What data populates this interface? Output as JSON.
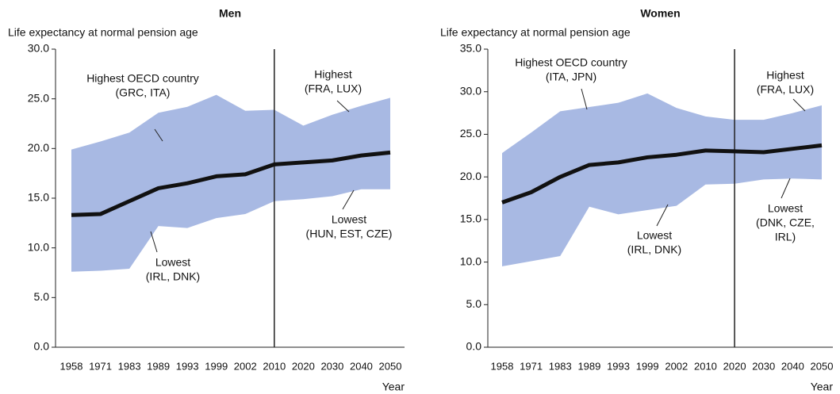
{
  "chart_data": [
    {
      "type": "band-line",
      "title": "Men",
      "y_label": "Life expectancy at normal pension age",
      "x_label": "Year",
      "categories": [
        "1958",
        "1971",
        "1983",
        "1989",
        "1993",
        "1999",
        "2002",
        "2010",
        "2020",
        "2030",
        "2040",
        "2050"
      ],
      "values": [
        13.3,
        13.4,
        14.7,
        16.0,
        16.5,
        17.2,
        17.4,
        18.4,
        18.6,
        18.8,
        19.3,
        19.6
      ],
      "band_high": [
        19.9,
        20.7,
        21.6,
        23.6,
        24.2,
        25.4,
        23.8,
        23.9,
        22.3,
        23.4,
        24.3,
        25.1
      ],
      "band_low": [
        7.6,
        7.7,
        7.9,
        12.2,
        12.0,
        13.0,
        13.4,
        14.7,
        14.9,
        15.2,
        15.9,
        15.9
      ],
      "color": "#111111",
      "band_color": "#a8b9e3",
      "divider": "2010",
      "ylim": [
        0,
        30
      ],
      "yticks": [
        {
          "value": 0,
          "label": "0.0"
        },
        {
          "value": 5,
          "label": "5.0"
        },
        {
          "value": 10,
          "label": "10.0"
        },
        {
          "value": 15,
          "label": "15.0"
        },
        {
          "value": 20,
          "label": "20.0"
        },
        {
          "value": 25,
          "label": "25.0"
        },
        {
          "value": 30,
          "label": "30.0"
        }
      ],
      "annotations": [
        [
          "Highest OECD country",
          "(GRC, ITA)"
        ],
        [
          "Highest",
          "(FRA, LUX)"
        ],
        [
          "Lowest",
          "(HUN, EST, CZE)"
        ],
        [
          "Lowest",
          "(IRL, DNK)"
        ]
      ]
    },
    {
      "type": "band-line",
      "title": "Women",
      "y_label": "Life expectancy at normal pension age",
      "x_label": "Year",
      "categories": [
        "1958",
        "1971",
        "1983",
        "1989",
        "1993",
        "1999",
        "2002",
        "2010",
        "2020",
        "2030",
        "2040",
        "2050"
      ],
      "values": [
        17.0,
        18.2,
        20.0,
        21.4,
        21.7,
        22.3,
        22.6,
        23.1,
        23.0,
        22.9,
        23.3,
        23.7
      ],
      "band_high": [
        22.8,
        25.2,
        27.7,
        28.2,
        28.7,
        29.8,
        28.1,
        27.1,
        26.7,
        26.7,
        27.5,
        28.4
      ],
      "band_low": [
        9.5,
        10.1,
        10.7,
        16.5,
        15.6,
        16.1,
        16.6,
        19.1,
        19.2,
        19.7,
        19.8,
        19.7
      ],
      "color": "#111111",
      "band_color": "#a8b9e3",
      "divider": "2020",
      "ylim": [
        0,
        35
      ],
      "yticks": [
        {
          "value": 0,
          "label": "0.0"
        },
        {
          "value": 5,
          "label": "5.0"
        },
        {
          "value": 10,
          "label": "10.0"
        },
        {
          "value": 15,
          "label": "15.0"
        },
        {
          "value": 20,
          "label": "20.0"
        },
        {
          "value": 25,
          "label": "25.0"
        },
        {
          "value": 30,
          "label": "30.0"
        },
        {
          "value": 35,
          "label": "35.0"
        }
      ],
      "annotations": [
        [
          "Highest OECD country",
          "(ITA, JPN)"
        ],
        [
          "Highest",
          "(FRA, LUX)"
        ],
        [
          "Lowest",
          "(DNK, CZE,",
          "IRL)"
        ],
        [
          "Lowest",
          "(IRL, DNK)"
        ]
      ]
    }
  ]
}
